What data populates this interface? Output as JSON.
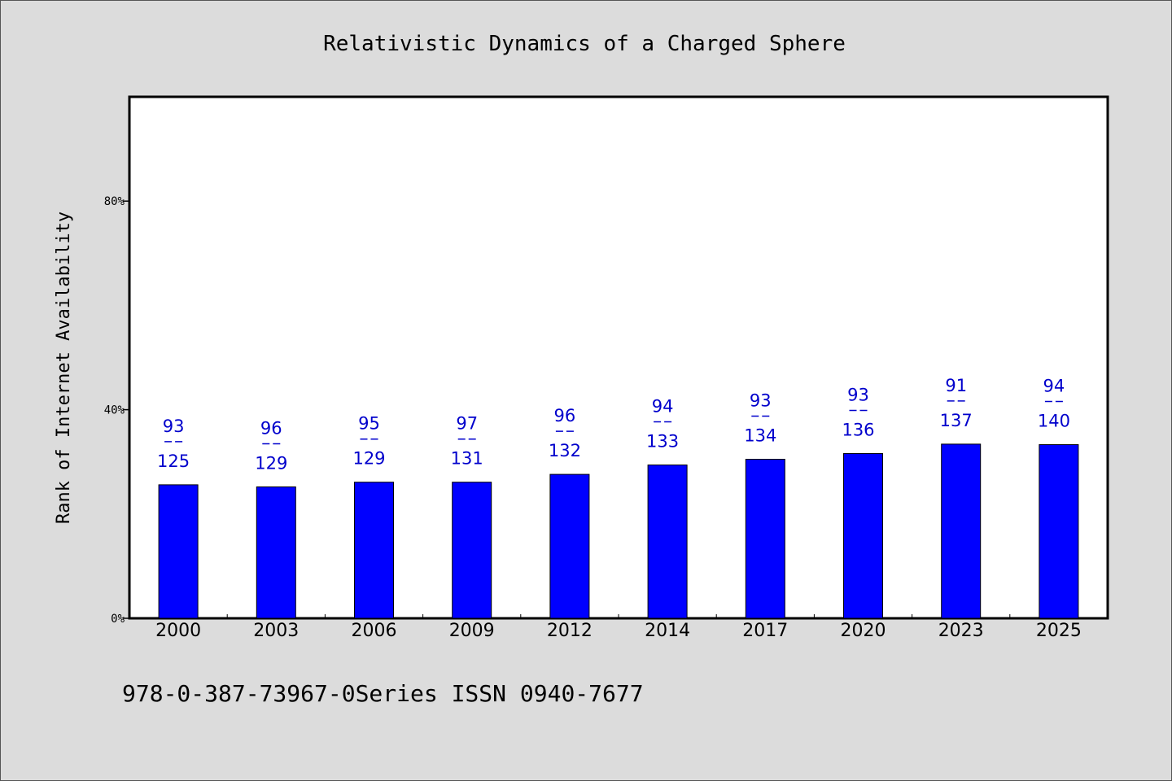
{
  "colors": {
    "background": "#dcdcdc",
    "plot_background": "#ffffff",
    "bar_fill": "#0000ff",
    "label_text": "#0000cc",
    "axis": "#000000"
  },
  "footer_text": "978-0-387-73967-0Series ISSN 0940-7677",
  "chart_data": {
    "type": "bar",
    "title": "Relativistic Dynamics of a Charged Sphere",
    "xlabel": "",
    "ylabel": "Rank of Internet Availability",
    "ylim": [
      0,
      100
    ],
    "y_ticks": [
      {
        "value": 0,
        "label": "0%"
      },
      {
        "value": 40,
        "label": "40%"
      },
      {
        "value": 80,
        "label": "80%"
      }
    ],
    "grid": false,
    "legend": "none",
    "categories": [
      "2000",
      "2003",
      "2006",
      "2009",
      "2012",
      "2014",
      "2017",
      "2020",
      "2023",
      "2025"
    ],
    "values": [
      25.6,
      25.2,
      26.1,
      26.1,
      27.6,
      29.4,
      30.5,
      31.6,
      33.4,
      33.3
    ],
    "fraction_labels": [
      {
        "numerator": "93",
        "denominator": "125"
      },
      {
        "numerator": "96",
        "denominator": "129"
      },
      {
        "numerator": "95",
        "denominator": "129"
      },
      {
        "numerator": "97",
        "denominator": "131"
      },
      {
        "numerator": "96",
        "denominator": "132"
      },
      {
        "numerator": "94",
        "denominator": "133"
      },
      {
        "numerator": "93",
        "denominator": "134"
      },
      {
        "numerator": "93",
        "denominator": "136"
      },
      {
        "numerator": "91",
        "denominator": "137"
      },
      {
        "numerator": "94",
        "denominator": "140"
      }
    ]
  }
}
